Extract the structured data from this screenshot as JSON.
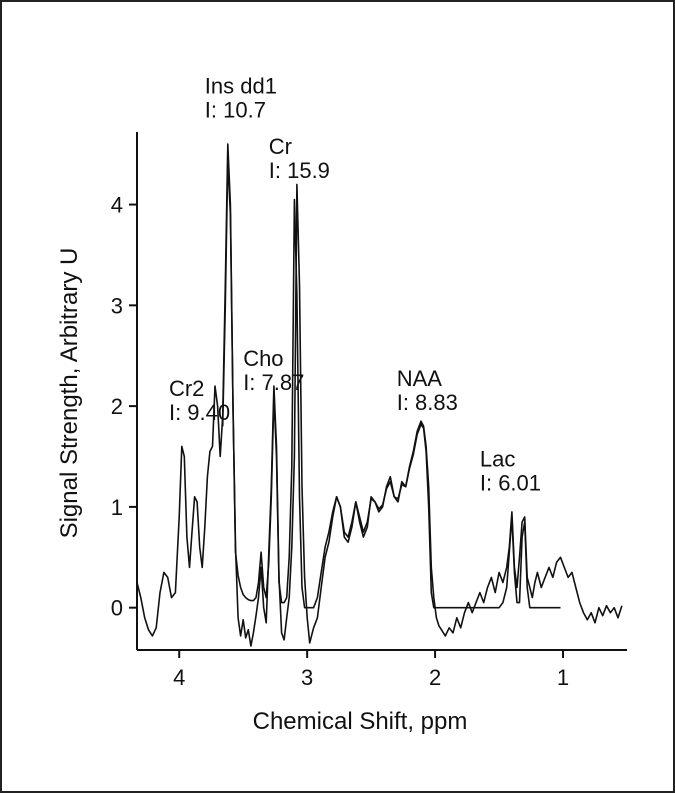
{
  "chart_data": {
    "type": "line",
    "title": "",
    "xlabel": "Chemical Shift, ppm",
    "ylabel": "Signal Strength, Arbitrary U",
    "x_reversed": true,
    "xlim": [
      4.33,
      0.5
    ],
    "ylim": [
      -0.42,
      4.72
    ],
    "x_ticks": [
      {
        "value": 4,
        "label": "4"
      },
      {
        "value": 3,
        "label": "3"
      },
      {
        "value": 2,
        "label": "2"
      },
      {
        "value": 1,
        "label": "1"
      }
    ],
    "y_ticks": [
      {
        "value": 0,
        "label": "0"
      },
      {
        "value": 1,
        "label": "1"
      },
      {
        "value": 2,
        "label": "2"
      },
      {
        "value": 3,
        "label": "3"
      },
      {
        "value": 4,
        "label": "4"
      }
    ],
    "grid": false,
    "legend": "none",
    "annotations": [
      {
        "id": "cr2",
        "name": "Cr2",
        "intensity": "I: 9.40",
        "x": 4.08,
        "y": 2.1
      },
      {
        "id": "ins",
        "name": "Ins dd1",
        "intensity": "I: 10.7",
        "x": 3.8,
        "y": 5.1
      },
      {
        "id": "cr",
        "name": "Cr",
        "intensity": "I: 15.9",
        "x": 3.3,
        "y": 4.5
      },
      {
        "id": "cho",
        "name": "Cho",
        "intensity": "I: 7.87",
        "x": 3.5,
        "y": 2.4
      },
      {
        "id": "naa",
        "name": "NAA",
        "intensity": "I: 8.83",
        "x": 2.3,
        "y": 2.2
      },
      {
        "id": "lac",
        "name": "Lac",
        "intensity": "I: 6.01",
        "x": 1.65,
        "y": 1.4
      }
    ],
    "series": [
      {
        "id": "measured",
        "x": [
          4.33,
          4.3,
          4.27,
          4.24,
          4.21,
          4.18,
          4.15,
          4.12,
          4.09,
          4.06,
          4.03,
          4.0,
          3.98,
          3.96,
          3.94,
          3.92,
          3.9,
          3.88,
          3.86,
          3.84,
          3.82,
          3.8,
          3.78,
          3.76,
          3.74,
          3.72,
          3.7,
          3.68,
          3.66,
          3.64,
          3.62,
          3.6,
          3.58,
          3.56,
          3.54,
          3.52,
          3.5,
          3.48,
          3.46,
          3.44,
          3.42,
          3.4,
          3.38,
          3.36,
          3.34,
          3.32,
          3.3,
          3.28,
          3.26,
          3.24,
          3.22,
          3.2,
          3.18,
          3.16,
          3.14,
          3.12,
          3.1,
          3.08,
          3.06,
          3.04,
          3.02,
          3.0,
          2.98,
          2.95,
          2.92,
          2.89,
          2.86,
          2.83,
          2.8,
          2.77,
          2.74,
          2.71,
          2.68,
          2.65,
          2.62,
          2.59,
          2.56,
          2.53,
          2.5,
          2.47,
          2.44,
          2.41,
          2.38,
          2.35,
          2.32,
          2.29,
          2.26,
          2.23,
          2.2,
          2.17,
          2.14,
          2.11,
          2.09,
          2.07,
          2.05,
          2.03,
          2.01,
          1.99,
          1.97,
          1.95,
          1.92,
          1.89,
          1.86,
          1.83,
          1.8,
          1.77,
          1.74,
          1.71,
          1.68,
          1.65,
          1.62,
          1.59,
          1.56,
          1.53,
          1.5,
          1.47,
          1.44,
          1.42,
          1.4,
          1.38,
          1.36,
          1.34,
          1.32,
          1.3,
          1.28,
          1.26,
          1.24,
          1.22,
          1.2,
          1.17,
          1.14,
          1.11,
          1.08,
          1.05,
          1.02,
          0.99,
          0.96,
          0.93,
          0.9,
          0.87,
          0.84,
          0.81,
          0.78,
          0.75,
          0.72,
          0.69,
          0.66,
          0.63,
          0.6,
          0.57,
          0.54
        ],
        "y": [
          0.25,
          0.1,
          -0.1,
          -0.22,
          -0.28,
          -0.2,
          0.15,
          0.35,
          0.3,
          0.1,
          0.15,
          0.9,
          1.6,
          1.5,
          0.7,
          0.4,
          0.75,
          1.1,
          1.05,
          0.6,
          0.4,
          0.8,
          1.3,
          1.55,
          1.6,
          2.2,
          2.0,
          1.5,
          1.9,
          3.2,
          4.6,
          4.0,
          2.0,
          0.6,
          -0.1,
          -0.28,
          -0.12,
          -0.3,
          -0.22,
          -0.38,
          -0.25,
          -0.08,
          0.1,
          0.4,
          0.0,
          -0.15,
          0.55,
          1.2,
          2.2,
          1.6,
          0.3,
          -0.25,
          -0.32,
          -0.1,
          0.1,
          0.6,
          1.5,
          4.2,
          3.2,
          1.2,
          0.3,
          -0.1,
          -0.35,
          -0.2,
          -0.1,
          0.2,
          0.5,
          0.65,
          0.9,
          1.1,
          1.0,
          0.7,
          0.65,
          0.8,
          1.05,
          0.85,
          0.7,
          0.8,
          1.1,
          1.05,
          0.95,
          1.0,
          1.2,
          1.3,
          1.1,
          1.05,
          1.25,
          1.2,
          1.4,
          1.55,
          1.75,
          1.85,
          1.8,
          1.6,
          1.2,
          0.4,
          0.1,
          -0.1,
          -0.18,
          -0.22,
          -0.28,
          -0.2,
          -0.25,
          -0.1,
          -0.2,
          -0.05,
          0.05,
          -0.05,
          0.05,
          0.15,
          0.05,
          0.2,
          0.3,
          0.15,
          0.35,
          0.25,
          0.4,
          0.6,
          0.95,
          0.4,
          0.2,
          0.5,
          0.85,
          0.9,
          0.3,
          0.2,
          0.1,
          0.25,
          0.35,
          0.2,
          0.3,
          0.4,
          0.3,
          0.45,
          0.5,
          0.4,
          0.3,
          0.35,
          0.2,
          0.05,
          -0.05,
          -0.12,
          -0.05,
          -0.15,
          0.0,
          -0.08,
          0.02,
          -0.05,
          0.0,
          -0.1,
          0.02
        ]
      },
      {
        "id": "fitted",
        "x": [
          3.66,
          3.64,
          3.62,
          3.6,
          3.58,
          3.56,
          3.54,
          3.52,
          3.5,
          3.48,
          3.46,
          3.44,
          3.42,
          3.4,
          3.38,
          3.36,
          3.34,
          3.32,
          3.3,
          3.28,
          3.26,
          3.24,
          3.22,
          3.2,
          3.18,
          3.16,
          3.14,
          3.12,
          3.1,
          3.08,
          3.06,
          3.04,
          3.02,
          3.0,
          2.98,
          2.95,
          2.92,
          2.89,
          2.86,
          2.83,
          2.8,
          2.77,
          2.74,
          2.71,
          2.68,
          2.65,
          2.62,
          2.59,
          2.56,
          2.53,
          2.5,
          2.47,
          2.44,
          2.41,
          2.38,
          2.35,
          2.32,
          2.29,
          2.26,
          2.23,
          2.2,
          2.17,
          2.14,
          2.11,
          2.09,
          2.07,
          2.05,
          2.03,
          2.01,
          1.99,
          1.97,
          1.95,
          1.9,
          1.8,
          1.7,
          1.6,
          1.55,
          1.5,
          1.47,
          1.44,
          1.42,
          1.4,
          1.38,
          1.36,
          1.34,
          1.32,
          1.3,
          1.28,
          1.26,
          1.24,
          1.22,
          1.2,
          1.15,
          1.1,
          1.05,
          1.02
        ],
        "y": [
          1.8,
          3.0,
          4.45,
          3.9,
          2.0,
          0.55,
          0.32,
          0.2,
          0.13,
          0.1,
          0.08,
          0.07,
          0.07,
          0.1,
          0.25,
          0.55,
          0.2,
          0.1,
          0.45,
          1.1,
          2.1,
          1.5,
          0.25,
          0.05,
          0.05,
          0.1,
          0.5,
          1.4,
          4.05,
          3.1,
          1.1,
          0.2,
          0.0,
          0.0,
          0.0,
          0.0,
          0.1,
          0.35,
          0.6,
          0.75,
          0.95,
          1.1,
          1.0,
          0.75,
          0.7,
          0.85,
          1.05,
          0.9,
          0.75,
          0.85,
          1.08,
          1.05,
          0.98,
          1.02,
          1.18,
          1.25,
          1.1,
          1.08,
          1.22,
          1.2,
          1.38,
          1.52,
          1.72,
          1.82,
          1.78,
          1.55,
          1.0,
          0.15,
          0.0,
          0.0,
          0.0,
          0.0,
          0.0,
          0.0,
          0.0,
          0.0,
          0.0,
          0.0,
          0.05,
          0.2,
          0.55,
          0.9,
          0.35,
          0.05,
          0.05,
          0.7,
          0.85,
          0.2,
          0.0,
          0.0,
          0.0,
          0.0,
          0.0,
          0.0,
          0.0,
          0.0
        ]
      }
    ]
  }
}
